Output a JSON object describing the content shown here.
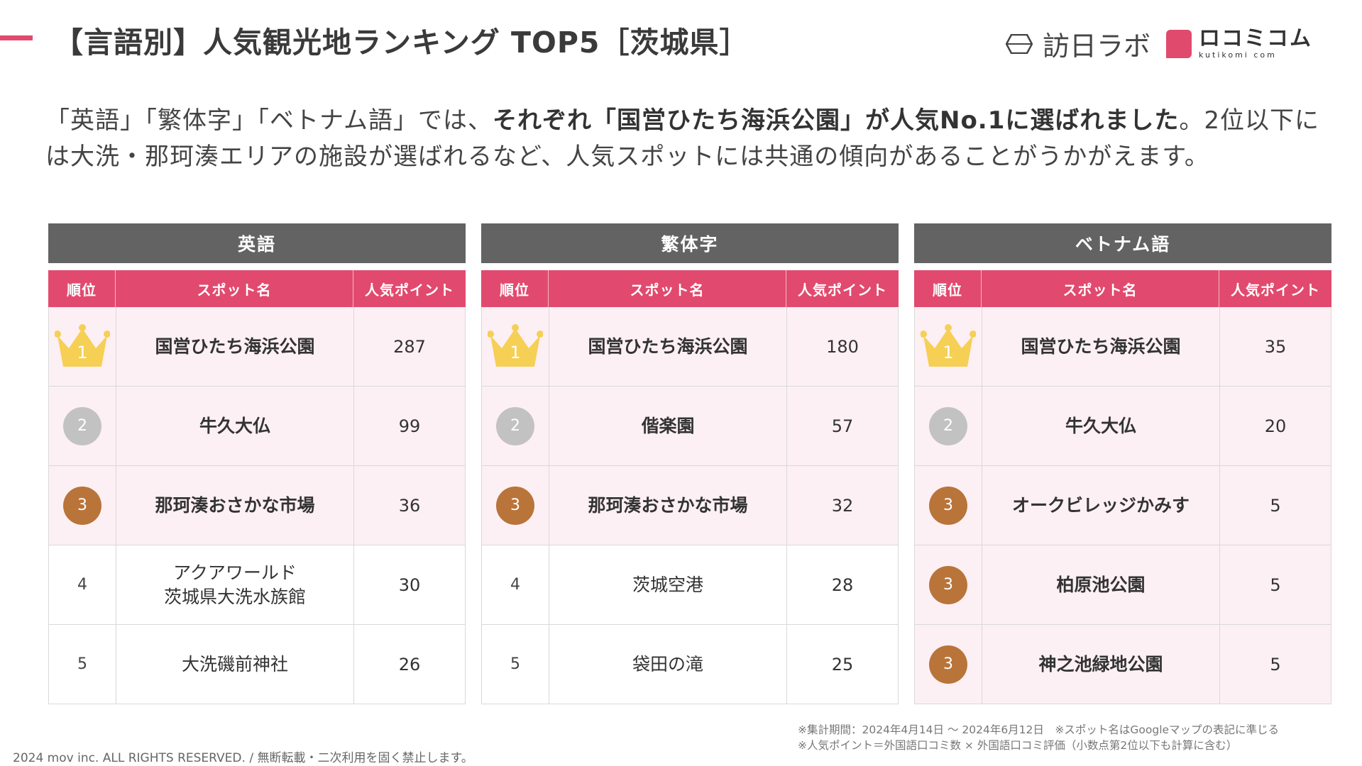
{
  "header": {
    "title": "【言語別】人気観光地ランキング TOP5［茨城県］",
    "logo_main": "訪日ラボ",
    "logo_secondary": "ロコミコム",
    "logo_secondary_sub": "kutikomi com"
  },
  "lead": {
    "part1": "「英語」「繁体字」「ベトナム語」では、",
    "part2_bold": "それぞれ「国営ひたち海浜公園」が人気No.1に選ばれました",
    "part3": "。2位以下には大洗・那珂湊エリアの施設が選ばれるなど、人気スポットには共通の傾向があることがうかがえます。"
  },
  "columns": {
    "rank": "順位",
    "spot": "スポット名",
    "points": "人気ポイント"
  },
  "tables": [
    {
      "language": "英語",
      "rows": [
        {
          "rank": "1",
          "style": "crown",
          "highlight": true,
          "spot": "国営ひたち海浜公園",
          "points": "287"
        },
        {
          "rank": "2",
          "style": "silver",
          "highlight": true,
          "spot": "牛久大仏",
          "points": "99"
        },
        {
          "rank": "3",
          "style": "bronze",
          "highlight": true,
          "spot": "那珂湊おさかな市場",
          "points": "36"
        },
        {
          "rank": "4",
          "style": "plain",
          "highlight": false,
          "spot": "アクアワールド\n茨城県大洗水族館",
          "points": "30"
        },
        {
          "rank": "5",
          "style": "plain",
          "highlight": false,
          "spot": "大洗磯前神社",
          "points": "26"
        }
      ]
    },
    {
      "language": "繁体字",
      "rows": [
        {
          "rank": "1",
          "style": "crown",
          "highlight": true,
          "spot": "国営ひたち海浜公園",
          "points": "180"
        },
        {
          "rank": "2",
          "style": "silver",
          "highlight": true,
          "spot": "偕楽園",
          "points": "57"
        },
        {
          "rank": "3",
          "style": "bronze",
          "highlight": true,
          "spot": "那珂湊おさかな市場",
          "points": "32"
        },
        {
          "rank": "4",
          "style": "plain",
          "highlight": false,
          "spot": "茨城空港",
          "points": "28"
        },
        {
          "rank": "5",
          "style": "plain",
          "highlight": false,
          "spot": "袋田の滝",
          "points": "25"
        }
      ]
    },
    {
      "language": "ベトナム語",
      "rows": [
        {
          "rank": "1",
          "style": "crown",
          "highlight": true,
          "spot": "国営ひたち海浜公園",
          "points": "35"
        },
        {
          "rank": "2",
          "style": "silver",
          "highlight": true,
          "spot": "牛久大仏",
          "points": "20"
        },
        {
          "rank": "3",
          "style": "bronze",
          "highlight": true,
          "spot": "オークビレッジかみす",
          "points": "5"
        },
        {
          "rank": "3",
          "style": "bronze",
          "highlight": true,
          "spot": "柏原池公園",
          "points": "5"
        },
        {
          "rank": "3",
          "style": "bronze",
          "highlight": true,
          "spot": "神之池緑地公園",
          "points": "5"
        }
      ]
    }
  ],
  "notes": {
    "line1": "※集計期間：2024年4月14日 〜 2024年6月12日　※スポット名はGoogleマップの表記に準じる",
    "line2": "※人気ポイント＝外国語口コミ数 × 外国語口コミ評価（小数点第2位以下も計算に含む）"
  },
  "footer": {
    "copyright": "2024 mov inc. ALL RIGHTS RESERVED. / 無断転載・二次利用を固く禁止します。"
  },
  "colors": {
    "accent": "#e14a6e",
    "header_gray": "#636363",
    "highlight_row": "#fdf0f4",
    "gold": "#f6cf55",
    "silver": "#c2c2c2",
    "bronze": "#b9743a"
  },
  "icons": {
    "crown": "crown-icon",
    "logo": "hexagon-logo-icon"
  }
}
